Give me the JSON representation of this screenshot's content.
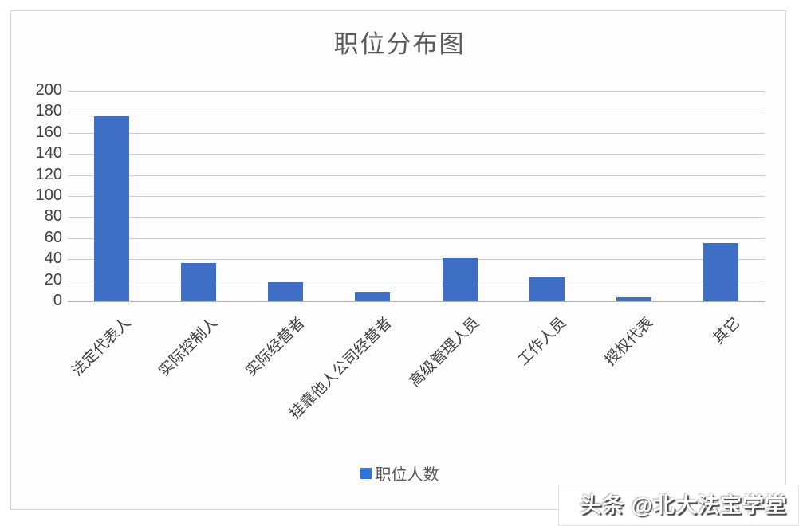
{
  "chart_data": {
    "type": "bar",
    "title": "职位分布图",
    "categories": [
      "法定代表人",
      "实际控制人",
      "实际经营者",
      "挂靠他人公司经营者",
      "高级管理人员",
      "工作人员",
      "授权代表",
      "其它"
    ],
    "series": [
      {
        "name": "职位人数",
        "values": [
          176,
          36,
          18,
          8,
          41,
          23,
          4,
          55
        ]
      }
    ],
    "xlabel": "",
    "ylabel": "",
    "ylim": [
      0,
      200
    ],
    "ytick_step": 20,
    "grid": true,
    "legend_position": "bottom",
    "bar_color": "#3e6fc4",
    "legend_swatch_color": "#2f74d8"
  },
  "watermark": {
    "text": "头条 @北大法宝学堂"
  }
}
